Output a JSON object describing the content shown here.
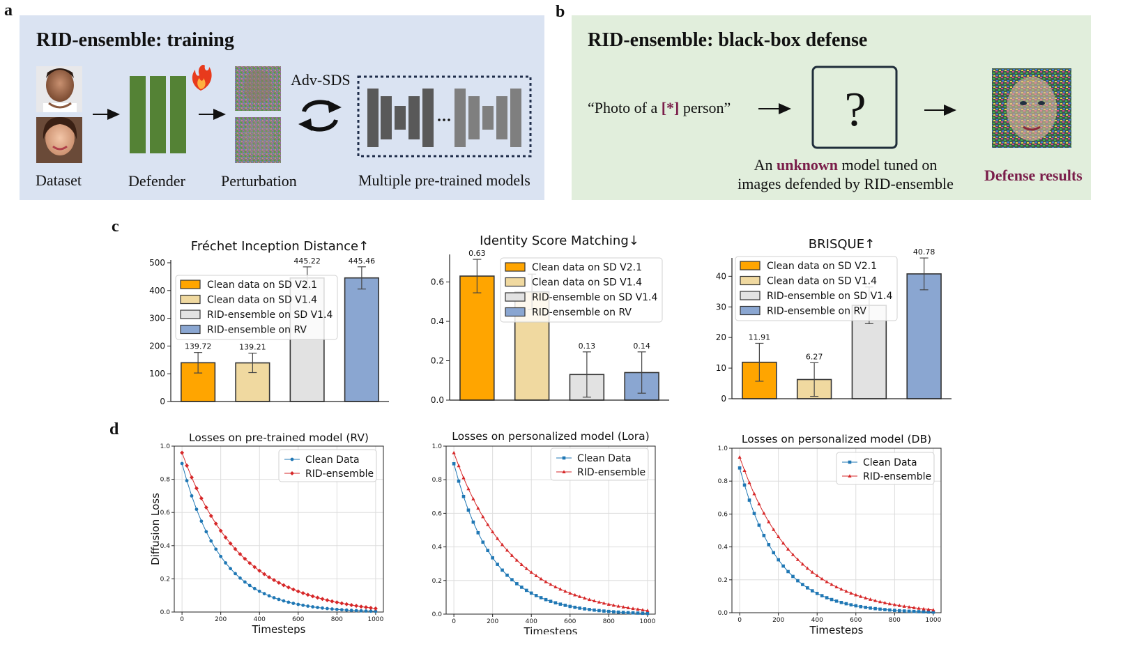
{
  "panels": {
    "a": "a",
    "b": "b",
    "c": "c",
    "d": "d"
  },
  "panel_a": {
    "title": "RID-ensemble: training",
    "labels": {
      "dataset": "Dataset",
      "defender": "Defender",
      "perturbation": "Perturbation",
      "adv_sds": "Adv-SDS",
      "models": "Multiple pre-trained models"
    },
    "colors": {
      "background": "#dae3f2",
      "defender": "#548235",
      "model_dark": "#595959",
      "model_light": "#7f7f7f"
    }
  },
  "panel_b": {
    "title": "RID-ensemble: black-box defense",
    "prompt_open": "“Photo of a ",
    "prompt_token": "[*]",
    "prompt_close": " person”",
    "question": "?",
    "desc_line1_pre": "An ",
    "desc_line1_em": "unknown",
    "desc_line1_post": " model tuned on",
    "desc_line2": "images defended by RID-ensemble",
    "result_label": "Defense results",
    "colors": {
      "background": "#e1eedc",
      "accent": "#7a1e4a"
    }
  },
  "chart_data": [
    {
      "type": "bar",
      "title": "Fréchet Inception Distance↑",
      "categories": [
        "Clean data on SD V2.1",
        "Clean data on SD V1.4",
        "RID-ensemble on SD V1.4",
        "RID-ensemble on RV"
      ],
      "values": [
        139.72,
        139.21,
        445.22,
        445.46
      ],
      "errors": [
        37,
        35,
        40,
        40
      ],
      "value_labels": [
        "139.72",
        "139.21",
        "445.22",
        "445.46"
      ],
      "ylim": [
        0,
        510
      ],
      "yticks": [
        0,
        100,
        200,
        300,
        400,
        500
      ],
      "ytick_labels": [
        "0",
        "100",
        "200",
        "300",
        "400",
        "500"
      ],
      "colors": [
        "#ffa500",
        "#f0d9a0",
        "#e2e2e2",
        "#8aa6d1"
      ],
      "legend": "upper-left"
    },
    {
      "type": "bar",
      "title": "Identity Score Matching↓",
      "categories": [
        "Clean data on SD V2.1",
        "Clean data on SD V1.4",
        "RID-ensemble on SD V1.4",
        "RID-ensemble on RV"
      ],
      "values": [
        0.63,
        0.55,
        0.13,
        0.14
      ],
      "errors": [
        0.085,
        0.09,
        0.115,
        0.105
      ],
      "value_labels": [
        "0.63",
        "",
        "0.13",
        "0.14"
      ],
      "ylim": [
        0,
        0.74
      ],
      "yticks": [
        0.0,
        0.2,
        0.4,
        0.6
      ],
      "ytick_labels": [
        "0.0",
        "0.2",
        "0.4",
        "0.6"
      ],
      "colors": [
        "#ffa500",
        "#f0d9a0",
        "#e2e2e2",
        "#8aa6d1"
      ],
      "legend": "upper-right"
    },
    {
      "type": "bar",
      "title": "BRISQUE↑",
      "categories": [
        "Clean data on SD V2.1",
        "Clean data on SD V1.4",
        "RID-ensemble on SD V1.4",
        "RID-ensemble on RV"
      ],
      "values": [
        11.91,
        6.27,
        30.5,
        40.78
      ],
      "errors": [
        6.2,
        5.5,
        6,
        5.2
      ],
      "value_labels": [
        "11.91",
        "6.27",
        "",
        "40.78"
      ],
      "ylim": [
        0,
        46
      ],
      "yticks": [
        0,
        10,
        20,
        30,
        40
      ],
      "ytick_labels": [
        "0",
        "10",
        "20",
        "30",
        "40"
      ],
      "colors": [
        "#ffa500",
        "#f0d9a0",
        "#e2e2e2",
        "#8aa6d1"
      ],
      "legend": "upper-left"
    },
    {
      "type": "line",
      "title": "Losses on pre-trained model (RV)",
      "xlabel": "Timesteps",
      "ylabel": "Diffusion Loss",
      "xlim": [
        -40,
        1040
      ],
      "ylim": [
        0,
        1.0
      ],
      "xticks": [
        0,
        200,
        400,
        600,
        800,
        1000
      ],
      "xtick_labels": [
        "0",
        "200",
        "400",
        "600",
        "800",
        "1000"
      ],
      "yticks": [
        0.0,
        0.2,
        0.4,
        0.6,
        0.8,
        1.0
      ],
      "ytick_labels": [
        "0.0",
        "0.2",
        "0.4",
        "0.6",
        "0.8",
        "1.0"
      ],
      "series": [
        {
          "name": "Clean Data",
          "color": "#1f77b4",
          "start": 0.895,
          "tau": 210,
          "pow": 1,
          "marker": "circle"
        },
        {
          "name": "RID-ensemble",
          "color": "#d62728",
          "start": 0.96,
          "tau": 320,
          "pow": 1.6,
          "marker": "diamond"
        }
      ]
    },
    {
      "type": "line",
      "title": "Losses on personalized model (Lora)",
      "xlabel": "Timesteps",
      "ylabel": "",
      "xlim": [
        -40,
        1040
      ],
      "ylim": [
        0,
        1.0
      ],
      "xticks": [
        0,
        200,
        400,
        600,
        800,
        1000
      ],
      "xtick_labels": [
        "0",
        "200",
        "400",
        "600",
        "800",
        "1000"
      ],
      "yticks": [
        0.0,
        0.2,
        0.4,
        0.6,
        0.8,
        1.0
      ],
      "ytick_labels": [
        "0.0",
        "0.2",
        "0.4",
        "0.6",
        "0.8",
        "1.0"
      ],
      "series": [
        {
          "name": "Clean Data",
          "color": "#1f77b4",
          "start": 0.895,
          "tau": 210,
          "pow": 1,
          "marker": "square"
        },
        {
          "name": "RID-ensemble",
          "color": "#d62728",
          "start": 0.96,
          "tau": 320,
          "pow": 1.6,
          "marker": "triangle"
        }
      ]
    },
    {
      "type": "line",
      "title": "Losses on personalized model (DB)",
      "xlabel": "Timesteps",
      "ylabel": "",
      "xlim": [
        -40,
        1040
      ],
      "ylim": [
        0,
        1.0
      ],
      "xticks": [
        0,
        200,
        400,
        600,
        800,
        1000
      ],
      "xtick_labels": [
        "0",
        "200",
        "400",
        "600",
        "800",
        "1000"
      ],
      "yticks": [
        0.0,
        0.2,
        0.4,
        0.6,
        0.8,
        1.0
      ],
      "ytick_labels": [
        "0.0",
        "0.2",
        "0.4",
        "0.6",
        "0.8",
        "1.0"
      ],
      "series": [
        {
          "name": "Clean Data",
          "color": "#1f77b4",
          "start": 0.88,
          "tau": 205,
          "pow": 1,
          "marker": "square"
        },
        {
          "name": "RID-ensemble",
          "color": "#d62728",
          "start": 0.945,
          "tau": 300,
          "pow": 1.6,
          "marker": "triangle"
        }
      ]
    }
  ]
}
